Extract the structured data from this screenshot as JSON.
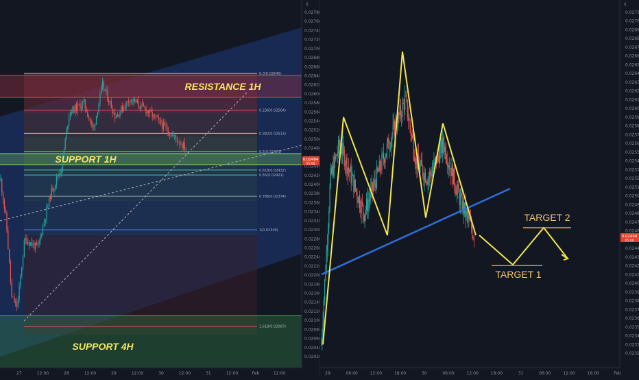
{
  "left_chart": {
    "zones": [
      {
        "label": "RESISTANCE 1H",
        "color": "#c2455a"
      },
      {
        "label": "SUPPORT 1H",
        "color": "#8fd37a"
      },
      {
        "label": "SUPPORT 4H",
        "color": "#2f7d43"
      }
    ],
    "fib_levels": [
      {
        "ratio": "0.0(0.02645)",
        "price": 0.02645,
        "color": "#c7c7c7"
      },
      {
        "ratio": "0.236(0.02564)",
        "price": 0.02564,
        "color": "#e5574f"
      },
      {
        "ratio": "0.382(0.02513)",
        "price": 0.02513,
        "color": "#d4c85a"
      },
      {
        "ratio": "0.5(0.02473)",
        "price": 0.02473,
        "color": "#6fcf6f"
      },
      {
        "ratio": "0.618(0.02432)",
        "price": 0.02432,
        "color": "#58b9c9"
      },
      {
        "ratio": "0.65(0.02421)",
        "price": 0.02421,
        "color": "#58b9c9"
      },
      {
        "ratio": "0.786(0.02374)",
        "price": 0.02374,
        "color": "#8f9da3"
      },
      {
        "ratio": "1(0.02300)",
        "price": 0.023,
        "color": "#3b7dd8"
      },
      {
        "ratio": "1.618(0.02087)",
        "price": 0.02087,
        "color": "#e5574f"
      }
    ],
    "y_ticks": [
      "0.02780",
      "0.02760",
      "0.02740",
      "0.02720",
      "0.02700",
      "0.02680",
      "0.02660",
      "0.02640",
      "0.02620",
      "0.02600",
      "0.02580",
      "0.02560",
      "0.02540",
      "0.02520",
      "0.02500",
      "0.02480",
      "0.02460",
      "0.02440",
      "0.02420",
      "0.02400",
      "0.02380",
      "0.02360",
      "0.02340",
      "0.02320",
      "0.02300",
      "0.02280",
      "0.02260",
      "0.02240",
      "0.02220",
      "0.02200",
      "0.02180",
      "0.02160",
      "0.02140",
      "0.02120",
      "0.02100",
      "0.02080",
      "0.02060",
      "0.02040",
      "0.02020"
    ],
    "x_ticks": [
      "27",
      "12:00",
      "28",
      "12:00",
      "29",
      "12:00",
      "30",
      "12:00",
      "31",
      "12:00",
      "Feb",
      "12:00"
    ],
    "price_tag": {
      "price": "0.02484",
      "time": "05:00"
    }
  },
  "right_chart": {
    "targets": [
      {
        "label": "TARGET 1"
      },
      {
        "label": "TARGET 2"
      }
    ],
    "y_ticks": [
      "0.02710",
      "0.02700",
      "0.02690",
      "0.02680",
      "0.02670",
      "0.02660",
      "0.02650",
      "0.02640",
      "0.02630",
      "0.02620",
      "0.02610",
      "0.02600",
      "0.02590",
      "0.02580",
      "0.02570",
      "0.02560",
      "0.02550",
      "0.02540",
      "0.02530",
      "0.02520",
      "0.02510",
      "0.02500",
      "0.02490",
      "0.02480",
      "0.02470",
      "0.02460",
      "0.02450",
      "0.02440",
      "0.02430",
      "0.02420",
      "0.02410",
      "0.02400",
      "0.02390",
      "0.02380",
      "0.02370",
      "0.02360",
      "0.02350",
      "0.02340",
      "0.02330",
      "0.02320"
    ],
    "x_ticks": [
      "29",
      "06:00",
      "12:00",
      "18:00",
      "30",
      "06:00",
      "12:00",
      "18:00",
      "31",
      "06:00",
      "12:00",
      "18:00",
      "Feb"
    ],
    "price_tag": {
      "price": "0.02469",
      "time": "05:00"
    },
    "zigzag_prices": [
      0.0233,
      0.0259,
      0.02455,
      0.02665,
      0.02475,
      0.02583,
      0.02455
    ]
  },
  "chart_data": [
    {
      "type": "line",
      "title": "",
      "xlabel": "",
      "ylabel": "",
      "ylim": [
        0.0201,
        0.0279
      ],
      "x": [
        "27",
        "12:00",
        "28",
        "12:00",
        "29",
        "12:00",
        "30",
        "12:00"
      ],
      "series": [
        {
          "values": [
            0.0228,
            0.0213,
            0.0226,
            0.0241,
            0.0254,
            0.0262,
            0.0252,
            0.0248
          ]
        }
      ]
    },
    {
      "type": "line",
      "title": "",
      "xlabel": "",
      "ylabel": "",
      "ylim": [
        0.0231,
        0.0272
      ],
      "x": [
        "29",
        "06:00",
        "12:00",
        "18:00",
        "30",
        "06:00",
        "12:00"
      ],
      "series": [
        {
          "values": [
            0.0233,
            0.0259,
            0.02455,
            0.02665,
            0.02475,
            0.02583,
            0.02455
          ]
        }
      ]
    }
  ]
}
